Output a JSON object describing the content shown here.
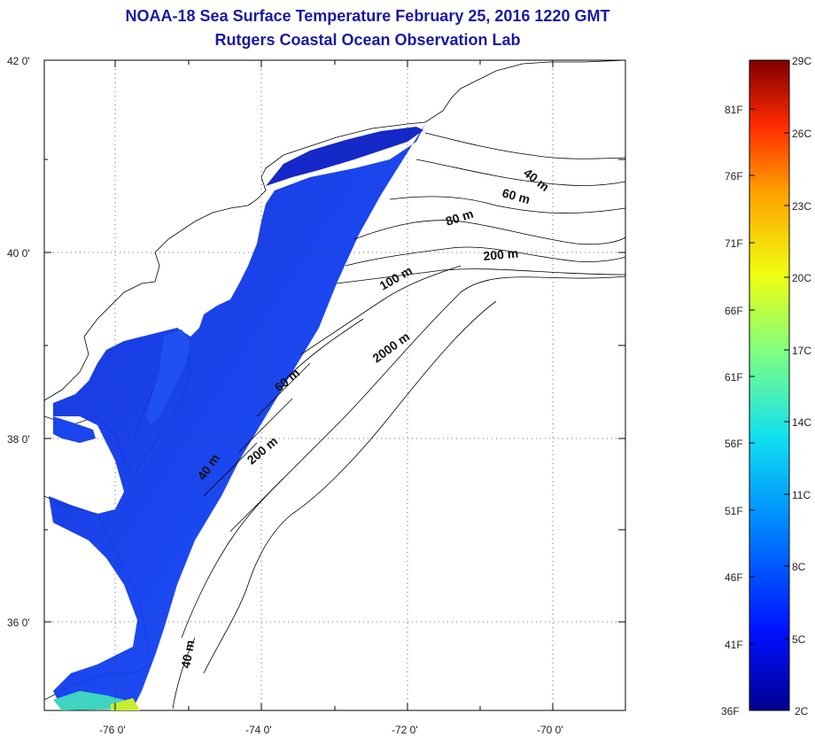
{
  "title": "NOAA-18 Sea Surface Temperature February 25, 2016 1220 GMT",
  "subtitle": "Rutgers Coastal Ocean Observation Lab",
  "map": {
    "lat_labels": [
      "42 0'",
      "40 0'",
      "38 0'",
      "36 0'"
    ],
    "lon_labels": [
      "-76 0'",
      "-74 0'",
      "-72 0'",
      "-70 0'"
    ],
    "grid": "dotted",
    "contours": [
      "40 m",
      "60 m",
      "80 m",
      "100 m",
      "200 m",
      "60 m",
      "200 m",
      "2000 m",
      "40 m",
      "40 m"
    ]
  },
  "colorbar": {
    "fahrenheit": [
      "81F",
      "76F",
      "71F",
      "66F",
      "61F",
      "56F",
      "51F",
      "46F",
      "41F",
      "36F"
    ],
    "celsius": [
      "29C",
      "26C",
      "23C",
      "20C",
      "17C",
      "14C",
      "11C",
      "8C",
      "5C",
      "2C"
    ],
    "colors": [
      "#7f0000",
      "#d40000",
      "#ff3c00",
      "#ff9e00",
      "#f0ff10",
      "#7dff82",
      "#10e0f0",
      "#0090ff",
      "#1030ff",
      "#00008f"
    ]
  }
}
